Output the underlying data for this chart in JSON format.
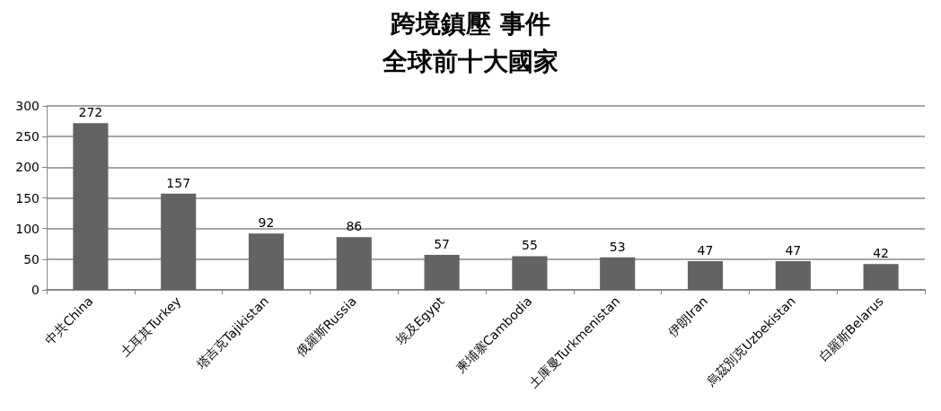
{
  "chart_data": {
    "type": "bar",
    "title": "跨境鎮壓 事件",
    "subtitle": "全球前十大國家",
    "categories": [
      "中共China",
      "土耳其Turkey",
      "塔吉克Tajikistan",
      "俄羅斯Russia",
      "埃及Egypt",
      "柬埔寨Cambodia",
      "土庫曼Turkmenistan",
      "伊朗Iran",
      "烏茲別克Uzbekistan",
      "白羅斯Belarus"
    ],
    "values": [
      272,
      157,
      92,
      86,
      57,
      55,
      53,
      47,
      47,
      42
    ],
    "color": "#636363",
    "ylim": [
      0,
      300
    ],
    "yticks": [
      0,
      50,
      100,
      150,
      200,
      250,
      300
    ],
    "grid": "y",
    "data_labels": true
  }
}
